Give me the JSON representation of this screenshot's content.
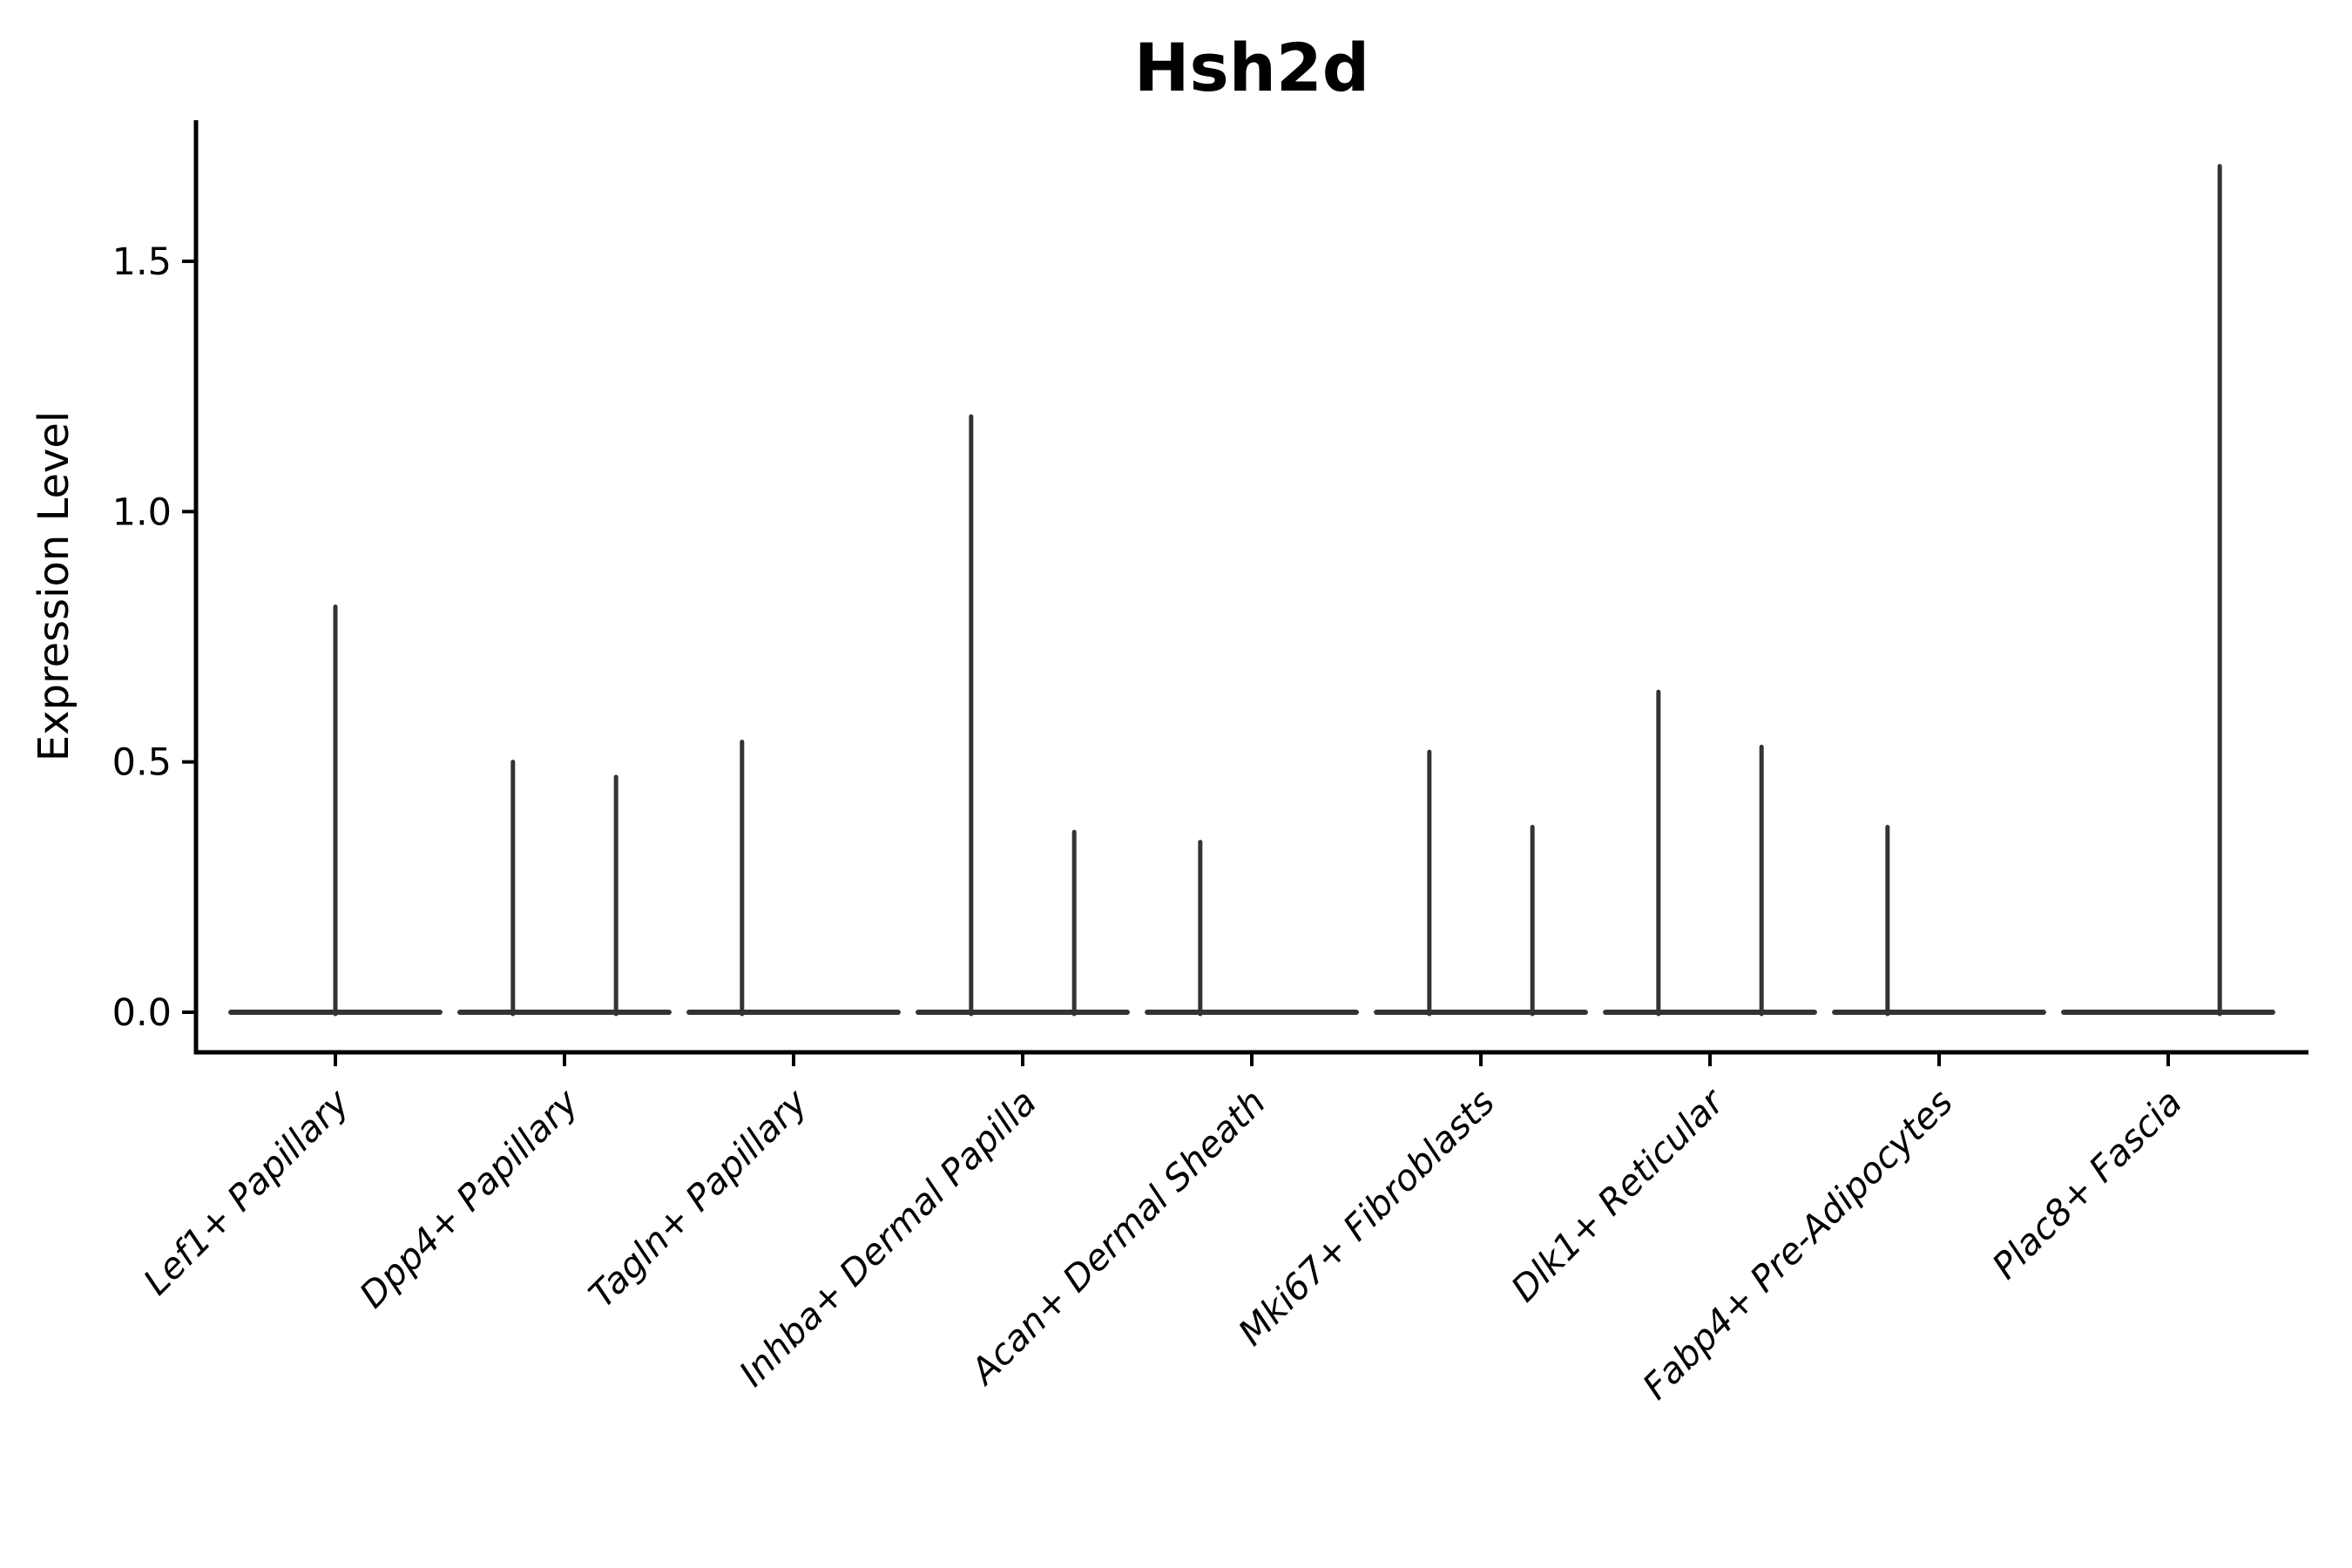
{
  "chart_data": {
    "type": "violin",
    "title": "Hsh2d",
    "ylabel": "Expression Level",
    "xlabel": "",
    "yticks": [
      0.0,
      0.5,
      1.0,
      1.5
    ],
    "ytick_labels": [
      "0.0",
      "0.5",
      "1.0",
      "1.5"
    ],
    "ylim": [
      -0.08,
      1.78
    ],
    "grid": false,
    "legend": "none",
    "categories": [
      "Lef1+ Papillary",
      "Dpp4+ Papillary",
      "Tagln+ Papillary",
      "Inhba+ Dermal Papilla",
      "Acan+ Dermal Sheath",
      "Mki67+ Fibroblasts",
      "Dlk1+ Reticular",
      "Fabp4+ Pre-Adipocytes",
      "Plac8+ Fascia"
    ],
    "violins": [
      {
        "category": "Lef1+ Papillary",
        "baseline_halfwidth": 0.456,
        "spikes": [
          {
            "offset": 0.0,
            "max": 0.81
          }
        ]
      },
      {
        "category": "Dpp4+ Papillary",
        "baseline_halfwidth": 0.456,
        "spikes": [
          {
            "offset": -0.225,
            "max": 0.5
          },
          {
            "offset": 0.225,
            "max": 0.47
          }
        ]
      },
      {
        "category": "Tagln+ Papillary",
        "baseline_halfwidth": 0.456,
        "spikes": [
          {
            "offset": -0.225,
            "max": 0.54
          }
        ]
      },
      {
        "category": "Inhba+ Dermal Papilla",
        "baseline_halfwidth": 0.456,
        "spikes": [
          {
            "offset": -0.225,
            "max": 1.19
          },
          {
            "offset": 0.225,
            "max": 0.36
          }
        ]
      },
      {
        "category": "Acan+ Dermal Sheath",
        "baseline_halfwidth": 0.456,
        "spikes": [
          {
            "offset": -0.225,
            "max": 0.34
          }
        ]
      },
      {
        "category": "Mki67+ Fibroblasts",
        "baseline_halfwidth": 0.456,
        "spikes": [
          {
            "offset": -0.225,
            "max": 0.52
          },
          {
            "offset": 0.225,
            "max": 0.37
          }
        ]
      },
      {
        "category": "Dlk1+ Reticular",
        "baseline_halfwidth": 0.456,
        "spikes": [
          {
            "offset": -0.225,
            "max": 0.64
          },
          {
            "offset": 0.225,
            "max": 0.53
          }
        ]
      },
      {
        "category": "Fabp4+ Pre-Adipocytes",
        "baseline_halfwidth": 0.456,
        "spikes": [
          {
            "offset": -0.225,
            "max": 0.37
          }
        ]
      },
      {
        "category": "Plac8+ Fascia",
        "baseline_halfwidth": 0.456,
        "spikes": [
          {
            "offset": 0.225,
            "max": 1.69
          }
        ]
      }
    ],
    "colors": {
      "background": "#ffffff",
      "violin_stroke": "#333333",
      "axis": "#000000",
      "text": "#000000"
    }
  }
}
